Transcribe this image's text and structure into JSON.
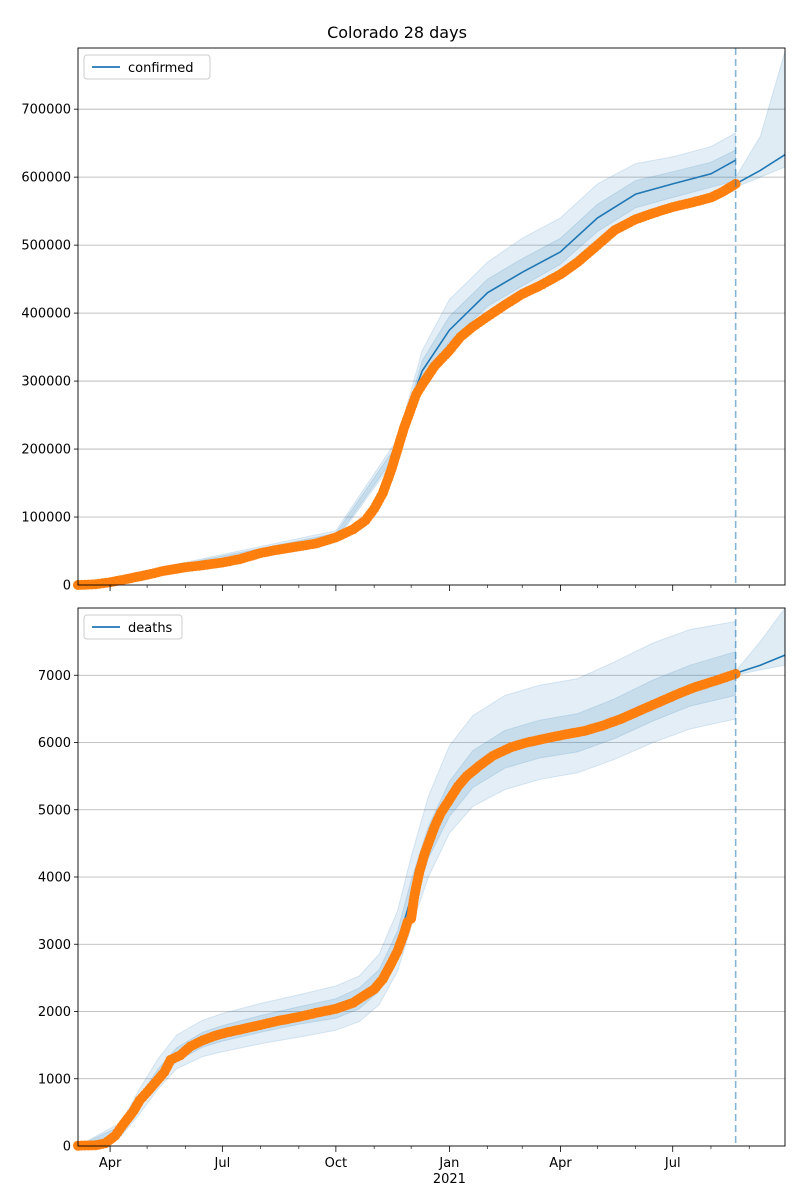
{
  "title": "Colorado 28 days",
  "chart_data": [
    {
      "type": "line",
      "legend": "confirmed",
      "legend_position": "top-left",
      "grid": "horizontal",
      "xlim": [
        "2020-03-06",
        "2021-09-30"
      ],
      "ylim": [
        0,
        790000
      ],
      "yticks": [
        0,
        100000,
        200000,
        300000,
        400000,
        500000,
        600000,
        700000
      ],
      "forecast_start": "2021-08-21",
      "colors": {
        "model": "#1f77b4",
        "observed": "#ff7f0e",
        "band": "#1f77b4",
        "vline": "#1f77b4"
      },
      "model": [
        [
          "2020-03-06",
          0
        ],
        [
          "2020-04-01",
          6000
        ],
        [
          "2020-05-01",
          20000
        ],
        [
          "2020-06-01",
          28000
        ],
        [
          "2020-07-01",
          34000
        ],
        [
          "2020-08-01",
          48000
        ],
        [
          "2020-09-01",
          58000
        ],
        [
          "2020-10-01",
          72000
        ],
        [
          "2020-10-25",
          95000
        ],
        [
          "2020-11-08",
          135000
        ],
        [
          "2020-11-20",
          200000
        ],
        [
          "2020-12-01",
          270000
        ],
        [
          "2020-12-10",
          315000
        ],
        [
          "2021-01-01",
          375000
        ],
        [
          "2021-02-01",
          430000
        ],
        [
          "2021-03-01",
          460000
        ],
        [
          "2021-04-01",
          490000
        ],
        [
          "2021-05-01",
          540000
        ],
        [
          "2021-06-01",
          575000
        ],
        [
          "2021-07-01",
          590000
        ],
        [
          "2021-08-01",
          605000
        ],
        [
          "2021-08-21",
          625000
        ]
      ],
      "forecast": [
        [
          "2021-08-21",
          590000
        ],
        [
          "2021-09-10",
          610000
        ],
        [
          "2021-09-30",
          633000
        ]
      ],
      "band_outer": [
        [
          "2020-03-06",
          0,
          0
        ],
        [
          "2020-10-01",
          65000,
          80000
        ],
        [
          "2020-11-20",
          190000,
          215000
        ],
        [
          "2020-12-10",
          290000,
          345000
        ],
        [
          "2021-01-01",
          345000,
          420000
        ],
        [
          "2021-02-01",
          395000,
          475000
        ],
        [
          "2021-03-01",
          425000,
          510000
        ],
        [
          "2021-04-01",
          460000,
          540000
        ],
        [
          "2021-05-01",
          505000,
          590000
        ],
        [
          "2021-06-01",
          540000,
          620000
        ],
        [
          "2021-07-01",
          555000,
          630000
        ],
        [
          "2021-08-01",
          570000,
          645000
        ],
        [
          "2021-08-21",
          580000,
          665000
        ]
      ],
      "band_inner": [
        [
          "2020-03-06",
          0,
          0
        ],
        [
          "2020-10-01",
          68000,
          76000
        ],
        [
          "2020-11-20",
          195000,
          208000
        ],
        [
          "2020-12-10",
          300000,
          330000
        ],
        [
          "2021-01-01",
          358000,
          395000
        ],
        [
          "2021-02-01",
          410000,
          450000
        ],
        [
          "2021-03-01",
          440000,
          480000
        ],
        [
          "2021-04-01",
          472000,
          510000
        ],
        [
          "2021-05-01",
          520000,
          560000
        ],
        [
          "2021-06-01",
          555000,
          595000
        ],
        [
          "2021-07-01",
          570000,
          608000
        ],
        [
          "2021-08-01",
          585000,
          622000
        ],
        [
          "2021-08-21",
          595000,
          640000
        ]
      ],
      "forecast_band": [
        [
          "2021-08-21",
          585000,
          600000
        ],
        [
          "2021-09-10",
          600000,
          660000
        ],
        [
          "2021-09-30",
          615000,
          785000
        ]
      ],
      "observed": [
        [
          "2020-03-06",
          0
        ],
        [
          "2020-03-20",
          1000
        ],
        [
          "2020-04-01",
          4000
        ],
        [
          "2020-04-15",
          9000
        ],
        [
          "2020-05-01",
          15000
        ],
        [
          "2020-05-15",
          21000
        ],
        [
          "2020-06-01",
          26000
        ],
        [
          "2020-06-15",
          29000
        ],
        [
          "2020-07-01",
          33000
        ],
        [
          "2020-07-15",
          38000
        ],
        [
          "2020-08-01",
          47000
        ],
        [
          "2020-08-15",
          52000
        ],
        [
          "2020-09-01",
          57000
        ],
        [
          "2020-09-15",
          61000
        ],
        [
          "2020-10-01",
          70000
        ],
        [
          "2020-10-15",
          82000
        ],
        [
          "2020-10-25",
          95000
        ],
        [
          "2020-11-01",
          112000
        ],
        [
          "2020-11-08",
          135000
        ],
        [
          "2020-11-15",
          170000
        ],
        [
          "2020-11-20",
          200000
        ],
        [
          "2020-11-25",
          230000
        ],
        [
          "2020-12-01",
          260000
        ],
        [
          "2020-12-05",
          280000
        ],
        [
          "2020-12-10",
          295000
        ],
        [
          "2020-12-20",
          322000
        ],
        [
          "2021-01-01",
          345000
        ],
        [
          "2021-01-10",
          365000
        ],
        [
          "2021-01-20",
          380000
        ],
        [
          "2021-02-01",
          395000
        ],
        [
          "2021-02-15",
          412000
        ],
        [
          "2021-03-01",
          428000
        ],
        [
          "2021-03-15",
          440000
        ],
        [
          "2021-04-01",
          457000
        ],
        [
          "2021-04-15",
          475000
        ],
        [
          "2021-05-01",
          500000
        ],
        [
          "2021-05-15",
          522000
        ],
        [
          "2021-06-01",
          538000
        ],
        [
          "2021-06-15",
          547000
        ],
        [
          "2021-07-01",
          556000
        ],
        [
          "2021-07-15",
          562000
        ],
        [
          "2021-08-01",
          570000
        ],
        [
          "2021-08-10",
          578000
        ],
        [
          "2021-08-21",
          590000
        ]
      ]
    },
    {
      "type": "line",
      "legend": "deaths",
      "legend_position": "top-left",
      "grid": "horizontal",
      "xlim": [
        "2020-03-06",
        "2021-09-30"
      ],
      "ylim": [
        0,
        8000
      ],
      "yticks": [
        0,
        1000,
        2000,
        3000,
        4000,
        5000,
        6000,
        7000
      ],
      "forecast_start": "2021-08-21",
      "colors": {
        "model": "#1f77b4",
        "observed": "#ff7f0e",
        "band": "#1f77b4",
        "vline": "#1f77b4"
      },
      "model": [
        [
          "2020-03-06",
          0
        ],
        [
          "2020-03-25",
          20
        ],
        [
          "2020-04-10",
          250
        ],
        [
          "2020-04-25",
          650
        ],
        [
          "2020-05-10",
          1050
        ],
        [
          "2020-05-25",
          1350
        ],
        [
          "2020-06-15",
          1580
        ],
        [
          "2020-07-01",
          1680
        ],
        [
          "2020-08-01",
          1820
        ],
        [
          "2020-09-01",
          1950
        ],
        [
          "2020-10-01",
          2050
        ],
        [
          "2020-10-20",
          2200
        ],
        [
          "2020-11-05",
          2450
        ],
        [
          "2020-11-20",
          3000
        ],
        [
          "2020-12-01",
          3700
        ],
        [
          "2020-12-15",
          4500
        ],
        [
          "2021-01-01",
          5150
        ],
        [
          "2021-01-20",
          5600
        ],
        [
          "2021-02-15",
          5900
        ],
        [
          "2021-03-15",
          6050
        ],
        [
          "2021-04-15",
          6150
        ],
        [
          "2021-05-15",
          6350
        ],
        [
          "2021-06-15",
          6620
        ],
        [
          "2021-07-15",
          6850
        ],
        [
          "2021-08-21",
          7030
        ]
      ],
      "forecast": [
        [
          "2021-08-21",
          7030
        ],
        [
          "2021-09-10",
          7150
        ],
        [
          "2021-09-30",
          7300
        ]
      ],
      "band_outer": [
        [
          "2020-03-06",
          0,
          0
        ],
        [
          "2020-04-10",
          150,
          350
        ],
        [
          "2020-04-25",
          480,
          850
        ],
        [
          "2020-05-10",
          850,
          1300
        ],
        [
          "2020-05-25",
          1150,
          1650
        ],
        [
          "2020-06-15",
          1330,
          1870
        ],
        [
          "2020-07-01",
          1400,
          1970
        ],
        [
          "2020-08-01",
          1520,
          2120
        ],
        [
          "2020-09-01",
          1620,
          2250
        ],
        [
          "2020-10-01",
          1720,
          2380
        ],
        [
          "2020-10-20",
          1850,
          2530
        ],
        [
          "2020-11-05",
          2100,
          2850
        ],
        [
          "2020-11-20",
          2600,
          3500
        ],
        [
          "2020-12-01",
          3250,
          4300
        ],
        [
          "2020-12-15",
          4000,
          5200
        ],
        [
          "2021-01-01",
          4650,
          5950
        ],
        [
          "2021-01-20",
          5050,
          6400
        ],
        [
          "2021-02-15",
          5300,
          6700
        ],
        [
          "2021-03-15",
          5450,
          6850
        ],
        [
          "2021-04-15",
          5550,
          6950
        ],
        [
          "2021-05-15",
          5750,
          7200
        ],
        [
          "2021-06-15",
          6000,
          7480
        ],
        [
          "2021-07-15",
          6200,
          7680
        ],
        [
          "2021-08-21",
          6350,
          7800
        ]
      ],
      "band_inner": [
        [
          "2020-03-06",
          0,
          0
        ],
        [
          "2020-04-10",
          200,
          300
        ],
        [
          "2020-04-25",
          570,
          740
        ],
        [
          "2020-05-10",
          960,
          1150
        ],
        [
          "2020-05-25",
          1260,
          1460
        ],
        [
          "2020-06-15",
          1470,
          1690
        ],
        [
          "2020-07-01",
          1560,
          1790
        ],
        [
          "2020-08-01",
          1690,
          1940
        ],
        [
          "2020-09-01",
          1810,
          2070
        ],
        [
          "2020-10-01",
          1900,
          2190
        ],
        [
          "2020-10-20",
          2040,
          2350
        ],
        [
          "2020-11-05",
          2300,
          2620
        ],
        [
          "2020-11-20",
          2820,
          3200
        ],
        [
          "2020-12-01",
          3500,
          3950
        ],
        [
          "2020-12-15",
          4280,
          4750
        ],
        [
          "2021-01-01",
          4900,
          5420
        ],
        [
          "2021-01-20",
          5330,
          5880
        ],
        [
          "2021-02-15",
          5620,
          6180
        ],
        [
          "2021-03-15",
          5770,
          6330
        ],
        [
          "2021-04-15",
          5860,
          6430
        ],
        [
          "2021-05-15",
          6060,
          6650
        ],
        [
          "2021-06-15",
          6320,
          6930
        ],
        [
          "2021-07-15",
          6540,
          7150
        ],
        [
          "2021-08-21",
          6700,
          7350
        ]
      ],
      "forecast_band": [
        [
          "2021-08-21",
          7000,
          7060
        ],
        [
          "2021-09-10",
          7080,
          7500
        ],
        [
          "2021-09-30",
          7150,
          8000
        ]
      ],
      "observed": [
        [
          "2020-03-06",
          5
        ],
        [
          "2020-03-20",
          10
        ],
        [
          "2020-03-28",
          40
        ],
        [
          "2020-04-05",
          150
        ],
        [
          "2020-04-12",
          330
        ],
        [
          "2020-04-20",
          520
        ],
        [
          "2020-04-25",
          680
        ],
        [
          "2020-05-01",
          800
        ],
        [
          "2020-05-08",
          950
        ],
        [
          "2020-05-15",
          1100
        ],
        [
          "2020-05-20",
          1280
        ],
        [
          "2020-05-28",
          1350
        ],
        [
          "2020-06-05",
          1480
        ],
        [
          "2020-06-15",
          1570
        ],
        [
          "2020-06-25",
          1640
        ],
        [
          "2020-07-05",
          1690
        ],
        [
          "2020-07-20",
          1750
        ],
        [
          "2020-08-01",
          1800
        ],
        [
          "2020-08-15",
          1860
        ],
        [
          "2020-09-01",
          1920
        ],
        [
          "2020-09-15",
          1980
        ],
        [
          "2020-10-01",
          2040
        ],
        [
          "2020-10-15",
          2130
        ],
        [
          "2020-10-25",
          2250
        ],
        [
          "2020-11-01",
          2330
        ],
        [
          "2020-11-08",
          2480
        ],
        [
          "2020-11-15",
          2720
        ],
        [
          "2020-11-20",
          2900
        ],
        [
          "2020-11-25",
          3150
        ],
        [
          "2020-11-28",
          3330
        ],
        [
          "2020-12-01",
          3380
        ],
        [
          "2020-12-03",
          3650
        ],
        [
          "2020-12-05",
          3850
        ],
        [
          "2020-12-08",
          4100
        ],
        [
          "2020-12-12",
          4350
        ],
        [
          "2020-12-16",
          4550
        ],
        [
          "2020-12-20",
          4750
        ],
        [
          "2020-12-25",
          4950
        ],
        [
          "2021-01-01",
          5150
        ],
        [
          "2021-01-08",
          5350
        ],
        [
          "2021-01-15",
          5500
        ],
        [
          "2021-01-25",
          5650
        ],
        [
          "2021-02-05",
          5800
        ],
        [
          "2021-02-20",
          5930
        ],
        [
          "2021-03-05",
          6000
        ],
        [
          "2021-03-20",
          6060
        ],
        [
          "2021-04-05",
          6120
        ],
        [
          "2021-04-20",
          6170
        ],
        [
          "2021-05-05",
          6250
        ],
        [
          "2021-05-20",
          6350
        ],
        [
          "2021-06-05",
          6480
        ],
        [
          "2021-06-20",
          6600
        ],
        [
          "2021-07-05",
          6720
        ],
        [
          "2021-07-20",
          6830
        ],
        [
          "2021-08-05",
          6920
        ],
        [
          "2021-08-21",
          7020
        ]
      ]
    }
  ],
  "xaxis": {
    "tick_labels": [
      {
        "date": "2020-04-01",
        "label": "Apr"
      },
      {
        "date": "2020-07-01",
        "label": "Jul"
      },
      {
        "date": "2020-10-01",
        "label": "Oct"
      },
      {
        "date": "2021-01-01",
        "label": "Jan"
      },
      {
        "date": "2021-04-01",
        "label": "Apr"
      },
      {
        "date": "2021-07-01",
        "label": "Jul"
      }
    ],
    "year_label": {
      "date": "2021-01-01",
      "label": "2021"
    },
    "minor_ticks": [
      "2020-05-01",
      "2020-06-01",
      "2020-08-01",
      "2020-09-01",
      "2020-11-01",
      "2020-12-01",
      "2021-02-01",
      "2021-03-01",
      "2021-05-01",
      "2021-06-01",
      "2021-08-01",
      "2021-09-01"
    ]
  }
}
